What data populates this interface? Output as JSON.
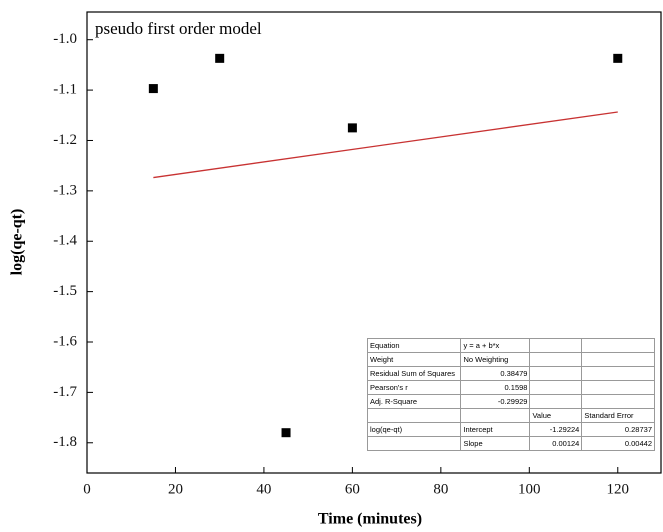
{
  "chart_data": {
    "type": "scatter",
    "annotation": "pseudo first order model",
    "xlabel": "Time (minutes)",
    "ylabel": "log(qe-qt)",
    "xlim": [
      0,
      130
    ],
    "ylim": [
      -1.86,
      -0.945
    ],
    "xticks": [
      0,
      20,
      40,
      60,
      80,
      100,
      120
    ],
    "yticks": [
      {
        "value": -1.0,
        "label": "-1.0"
      },
      -1.1,
      -1.2,
      -1.3,
      -1.4,
      -1.5,
      -1.6,
      -1.7,
      -1.8
    ],
    "series": [
      {
        "name": "log(qe-qt)",
        "color": "#000000",
        "x": [
          15,
          30,
          45,
          60,
          120
        ],
        "values": [
          -1.097,
          -1.037,
          -1.78,
          -1.175,
          -1.037
        ]
      }
    ],
    "fit": {
      "color": "#c83232",
      "x": [
        15,
        120
      ],
      "values": [
        -1.2736,
        -1.1434
      ]
    },
    "table": {
      "rows": [
        [
          "Equation",
          "y = a + b*x",
          "",
          ""
        ],
        [
          "Weight",
          "No Weighting",
          "",
          ""
        ],
        [
          "Residual Sum of Squares",
          "0.38479",
          "",
          ""
        ],
        [
          "Pearson's r",
          "0.1598",
          "",
          ""
        ],
        [
          "Adj. R-Square",
          "-0.29929",
          "",
          ""
        ],
        [
          "",
          "",
          "Value",
          "Standard Error"
        ],
        [
          "log(qe-qt)",
          "Intercept",
          "-1.29224",
          "0.28737"
        ],
        [
          "",
          "Slope",
          "0.00124",
          "0.00442"
        ]
      ]
    }
  }
}
